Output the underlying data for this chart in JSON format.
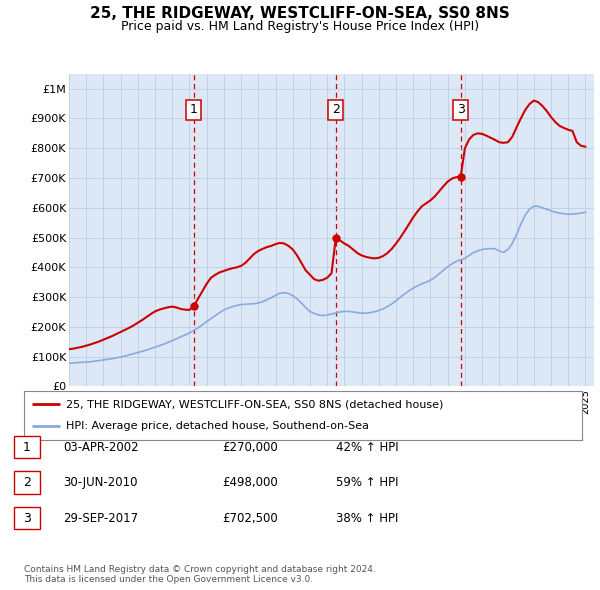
{
  "title1": "25, THE RIDGEWAY, WESTCLIFF-ON-SEA, SS0 8NS",
  "title2": "Price paid vs. HM Land Registry's House Price Index (HPI)",
  "plot_bg_color": "#dce8f5",
  "yticks": [
    0,
    100000,
    200000,
    300000,
    400000,
    500000,
    600000,
    700000,
    800000,
    900000,
    1000000
  ],
  "ytick_labels": [
    "£0",
    "£100K",
    "£200K",
    "£300K",
    "£400K",
    "£500K",
    "£600K",
    "£700K",
    "£800K",
    "£900K",
    "£1M"
  ],
  "xmin": 1995.0,
  "xmax": 2025.5,
  "ymin": 0,
  "ymax": 1050000,
  "purchase_dates": [
    2002.25,
    2010.5,
    2017.75
  ],
  "purchase_prices": [
    270000,
    498000,
    702500
  ],
  "purchase_labels": [
    "1",
    "2",
    "3"
  ],
  "hpi_x": [
    1995.0,
    1995.25,
    1995.5,
    1995.75,
    1996.0,
    1996.25,
    1996.5,
    1996.75,
    1997.0,
    1997.25,
    1997.5,
    1997.75,
    1998.0,
    1998.25,
    1998.5,
    1998.75,
    1999.0,
    1999.25,
    1999.5,
    1999.75,
    2000.0,
    2000.25,
    2000.5,
    2000.75,
    2001.0,
    2001.25,
    2001.5,
    2001.75,
    2002.0,
    2002.25,
    2002.5,
    2002.75,
    2003.0,
    2003.25,
    2003.5,
    2003.75,
    2004.0,
    2004.25,
    2004.5,
    2004.75,
    2005.0,
    2005.25,
    2005.5,
    2005.75,
    2006.0,
    2006.25,
    2006.5,
    2006.75,
    2007.0,
    2007.25,
    2007.5,
    2007.75,
    2008.0,
    2008.25,
    2008.5,
    2008.75,
    2009.0,
    2009.25,
    2009.5,
    2009.75,
    2010.0,
    2010.25,
    2010.5,
    2010.75,
    2011.0,
    2011.25,
    2011.5,
    2011.75,
    2012.0,
    2012.25,
    2012.5,
    2012.75,
    2013.0,
    2013.25,
    2013.5,
    2013.75,
    2014.0,
    2014.25,
    2014.5,
    2014.75,
    2015.0,
    2015.25,
    2015.5,
    2015.75,
    2016.0,
    2016.25,
    2016.5,
    2016.75,
    2017.0,
    2017.25,
    2017.5,
    2017.75,
    2018.0,
    2018.25,
    2018.5,
    2018.75,
    2019.0,
    2019.25,
    2019.5,
    2019.75,
    2020.0,
    2020.25,
    2020.5,
    2020.75,
    2021.0,
    2021.25,
    2021.5,
    2021.75,
    2022.0,
    2022.25,
    2022.5,
    2022.75,
    2023.0,
    2023.25,
    2023.5,
    2023.75,
    2024.0,
    2024.25,
    2024.5,
    2024.75,
    2025.0
  ],
  "hpi_y": [
    78000,
    79000,
    80000,
    81000,
    82000,
    83000,
    85000,
    87000,
    89000,
    91000,
    93000,
    96000,
    99000,
    102000,
    106000,
    110000,
    114000,
    118000,
    122000,
    127000,
    132000,
    137000,
    142000,
    148000,
    154000,
    160000,
    167000,
    173000,
    180000,
    188000,
    197000,
    207000,
    218000,
    228000,
    238000,
    248000,
    257000,
    263000,
    268000,
    272000,
    275000,
    276000,
    277000,
    278000,
    280000,
    285000,
    291000,
    298000,
    306000,
    313000,
    315000,
    312000,
    305000,
    294000,
    280000,
    265000,
    252000,
    245000,
    240000,
    238000,
    240000,
    243000,
    247000,
    250000,
    252000,
    252000,
    250000,
    248000,
    246000,
    246000,
    248000,
    251000,
    255000,
    261000,
    268000,
    277000,
    288000,
    300000,
    311000,
    321000,
    330000,
    338000,
    345000,
    350000,
    357000,
    366000,
    378000,
    390000,
    402000,
    412000,
    420000,
    425000,
    430000,
    440000,
    450000,
    455000,
    460000,
    462000,
    463000,
    462000,
    455000,
    450000,
    460000,
    480000,
    510000,
    545000,
    575000,
    595000,
    605000,
    605000,
    600000,
    595000,
    590000,
    585000,
    582000,
    580000,
    578000,
    579000,
    580000,
    582000,
    585000
  ],
  "price_red_x": [
    1995.0,
    1995.25,
    1995.5,
    1995.75,
    1996.0,
    1996.25,
    1996.5,
    1996.75,
    1997.0,
    1997.25,
    1997.5,
    1997.75,
    1998.0,
    1998.25,
    1998.5,
    1998.75,
    1999.0,
    1999.25,
    1999.5,
    1999.75,
    2000.0,
    2000.25,
    2000.5,
    2000.75,
    2001.0,
    2001.25,
    2001.5,
    2001.75,
    2002.0,
    2002.25,
    2002.5,
    2002.75,
    2003.0,
    2003.25,
    2003.5,
    2003.75,
    2004.0,
    2004.25,
    2004.5,
    2004.75,
    2005.0,
    2005.25,
    2005.5,
    2005.75,
    2006.0,
    2006.25,
    2006.5,
    2006.75,
    2007.0,
    2007.25,
    2007.5,
    2007.75,
    2008.0,
    2008.25,
    2008.5,
    2008.75,
    2009.0,
    2009.25,
    2009.5,
    2009.75,
    2010.0,
    2010.25,
    2010.5,
    2010.75,
    2011.0,
    2011.25,
    2011.5,
    2011.75,
    2012.0,
    2012.25,
    2012.5,
    2012.75,
    2013.0,
    2013.25,
    2013.5,
    2013.75,
    2014.0,
    2014.25,
    2014.5,
    2014.75,
    2015.0,
    2015.25,
    2015.5,
    2015.75,
    2016.0,
    2016.25,
    2016.5,
    2016.75,
    2017.0,
    2017.25,
    2017.5,
    2017.75,
    2018.0,
    2018.25,
    2018.5,
    2018.75,
    2019.0,
    2019.25,
    2019.5,
    2019.75,
    2020.0,
    2020.25,
    2020.5,
    2020.75,
    2021.0,
    2021.25,
    2021.5,
    2021.75,
    2022.0,
    2022.25,
    2022.5,
    2022.75,
    2023.0,
    2023.25,
    2023.5,
    2023.75,
    2024.0,
    2024.25,
    2024.5,
    2024.75,
    2025.0
  ],
  "price_red_y": [
    125000,
    127000,
    130000,
    133000,
    137000,
    141000,
    146000,
    151000,
    157000,
    163000,
    169000,
    176000,
    183000,
    190000,
    197000,
    205000,
    214000,
    223000,
    233000,
    243000,
    252000,
    258000,
    262000,
    266000,
    268000,
    265000,
    260000,
    258000,
    257000,
    270000,
    295000,
    320000,
    345000,
    365000,
    375000,
    383000,
    388000,
    393000,
    397000,
    400000,
    405000,
    415000,
    430000,
    445000,
    455000,
    462000,
    468000,
    472000,
    478000,
    482000,
    480000,
    472000,
    460000,
    440000,
    415000,
    390000,
    375000,
    360000,
    355000,
    358000,
    365000,
    380000,
    498000,
    490000,
    480000,
    472000,
    460000,
    448000,
    440000,
    435000,
    432000,
    430000,
    432000,
    438000,
    448000,
    462000,
    480000,
    500000,
    522000,
    545000,
    568000,
    588000,
    605000,
    615000,
    625000,
    638000,
    655000,
    672000,
    688000,
    698000,
    703000,
    702500,
    800000,
    830000,
    845000,
    850000,
    848000,
    842000,
    835000,
    828000,
    820000,
    818000,
    820000,
    838000,
    870000,
    900000,
    928000,
    948000,
    960000,
    955000,
    942000,
    925000,
    905000,
    888000,
    875000,
    868000,
    862000,
    858000,
    820000,
    808000,
    805000
  ],
  "red_color": "#cc0000",
  "blue_color": "#88aadd",
  "dashed_color": "#cc0000",
  "legend_label_red": "25, THE RIDGEWAY, WESTCLIFF-ON-SEA, SS0 8NS (detached house)",
  "legend_label_blue": "HPI: Average price, detached house, Southend-on-Sea",
  "table_rows": [
    [
      "1",
      "03-APR-2002",
      "£270,000",
      "42% ↑ HPI"
    ],
    [
      "2",
      "30-JUN-2010",
      "£498,000",
      "59% ↑ HPI"
    ],
    [
      "3",
      "29-SEP-2017",
      "£702,500",
      "38% ↑ HPI"
    ]
  ],
  "footer_text": "Contains HM Land Registry data © Crown copyright and database right 2024.\nThis data is licensed under the Open Government Licence v3.0.",
  "grid_color": "#b8c8e0",
  "title_fontsize": 11,
  "subtitle_fontsize": 9
}
